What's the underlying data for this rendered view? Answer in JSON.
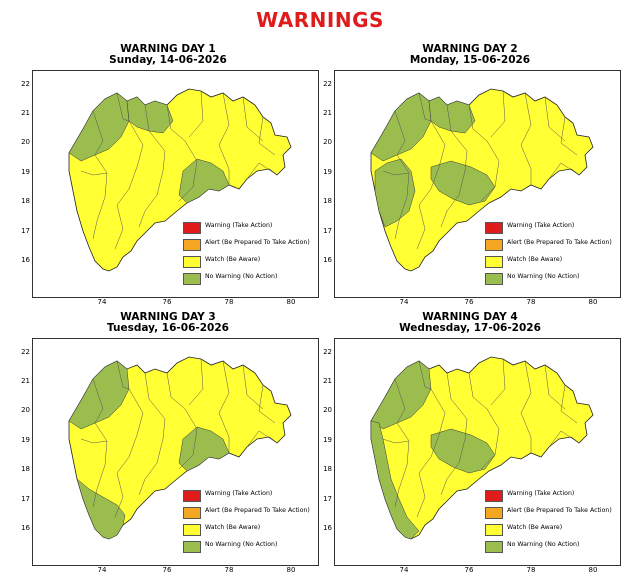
{
  "header": {
    "title": "WARNINGS"
  },
  "colors": {
    "warning": "#e01b1b",
    "alert": "#f5a623",
    "watch": "#ffff33",
    "no_warning": "#9bbd4e"
  },
  "legend": [
    {
      "label": "Warning (Take Action)",
      "color": "#e01b1b"
    },
    {
      "label": "Alert (Be Prepared To Take Action)",
      "color": "#f5a623"
    },
    {
      "label": "Watch (Be Aware)",
      "color": "#ffff33"
    },
    {
      "label": "No Warning (No Action)",
      "color": "#9bbd4e"
    }
  ],
  "axes": {
    "x_ticks": [
      "74",
      "76",
      "78",
      "80"
    ],
    "y_ticks": [
      "22",
      "21",
      "20",
      "19",
      "18",
      "17",
      "16"
    ]
  },
  "panels": [
    {
      "title": "WARNING DAY 1",
      "subtitle": "Sunday, 14-06-2026",
      "no_warning_regions": [
        "north-west",
        "north-central",
        "east"
      ]
    },
    {
      "title": "WARNING DAY 2",
      "subtitle": "Monday, 15-06-2026",
      "no_warning_regions": [
        "north-west",
        "central-west",
        "north-central",
        "central"
      ]
    },
    {
      "title": "WARNING DAY 3",
      "subtitle": "Tuesday, 16-06-2026",
      "no_warning_regions": [
        "north-west",
        "east",
        "south-konkan"
      ]
    },
    {
      "title": "WARNING DAY 4",
      "subtitle": "Wednesday, 17-06-2026",
      "no_warning_regions": [
        "north-west",
        "konkan",
        "central"
      ]
    }
  ]
}
